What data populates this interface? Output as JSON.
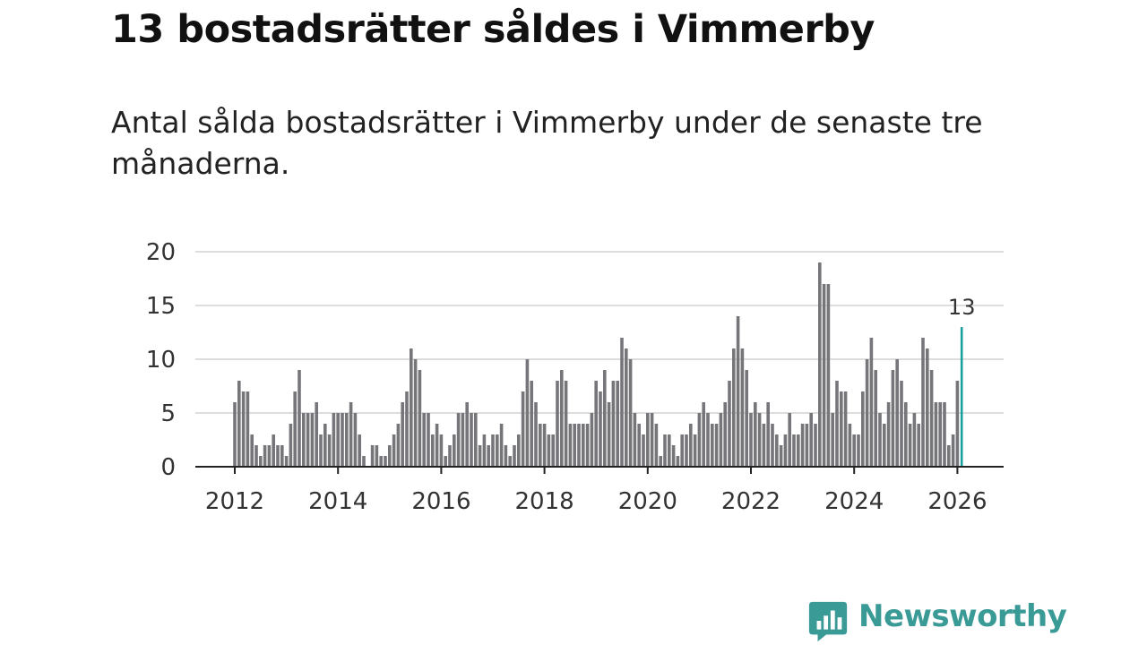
{
  "page": {
    "title": "13 bostadsrätter såldes i Vimmerby",
    "subtitle": "Antal sålda bostadsrätter i Vimmerby under de senaste tre månaderna.",
    "brand": "Newsworthy"
  },
  "colors": {
    "bar": "#76757a",
    "highlight": "#18a0a0",
    "grid": "#dddddd",
    "axis": "#222222",
    "brand": "#3a9a96"
  },
  "chart_data": {
    "type": "bar",
    "title": "Antal sålda bostadsrätter i Vimmerby",
    "xlabel": "",
    "ylabel": "",
    "ylim": [
      0,
      20
    ],
    "yticks": [
      0,
      5,
      10,
      15,
      20
    ],
    "x_start": "2012-01",
    "xticks": [
      2012,
      2014,
      2016,
      2018,
      2020,
      2022,
      2024,
      2026
    ],
    "grid": true,
    "values": [
      6,
      8,
      7,
      7,
      3,
      2,
      1,
      2,
      2,
      3,
      2,
      2,
      1,
      4,
      7,
      9,
      5,
      5,
      5,
      6,
      3,
      4,
      3,
      5,
      5,
      5,
      5,
      6,
      5,
      3,
      1,
      0,
      2,
      2,
      1,
      1,
      2,
      3,
      4,
      6,
      7,
      11,
      10,
      9,
      5,
      5,
      3,
      4,
      3,
      1,
      2,
      3,
      5,
      5,
      6,
      5,
      5,
      2,
      3,
      2,
      3,
      3,
      4,
      2,
      1,
      2,
      3,
      7,
      10,
      8,
      6,
      4,
      4,
      3,
      3,
      8,
      9,
      8,
      4,
      4,
      4,
      4,
      4,
      5,
      8,
      7,
      9,
      6,
      8,
      8,
      12,
      11,
      10,
      5,
      4,
      3,
      5,
      5,
      4,
      1,
      3,
      3,
      2,
      1,
      3,
      3,
      4,
      3,
      5,
      6,
      5,
      4,
      4,
      5,
      6,
      8,
      11,
      14,
      11,
      9,
      5,
      6,
      5,
      4,
      6,
      4,
      3,
      2,
      3,
      5,
      3,
      3,
      4,
      4,
      5,
      4,
      19,
      17,
      17,
      5,
      8,
      7,
      7,
      4,
      3,
      3,
      7,
      10,
      12,
      9,
      5,
      4,
      6,
      9,
      10,
      8,
      6,
      4,
      5,
      4,
      12,
      11,
      9,
      6,
      6,
      6,
      2,
      3,
      8,
      13
    ],
    "highlight": {
      "index": 169,
      "label": "13"
    }
  }
}
